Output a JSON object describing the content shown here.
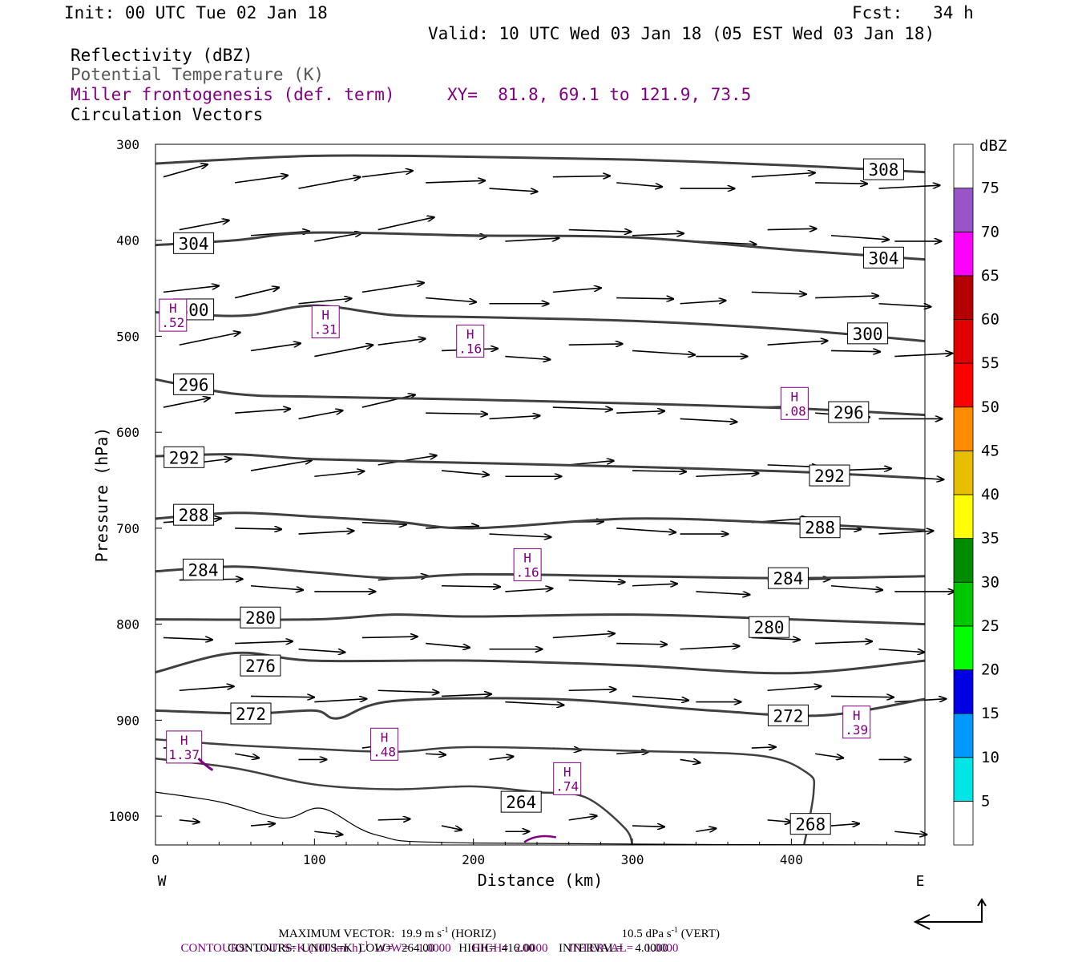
{
  "header": {
    "init": "Init: 00 UTC Tue 02 Jan 18",
    "fcst": "Fcst:   34 h",
    "valid": "Valid: 10 UTC Wed 03 Jan 18 (05 EST Wed 03 Jan 18)",
    "field1": "Reflectivity (dBZ)",
    "field2": "Potential Temperature (K)",
    "field3": "Miller frontogenesis (def. term)",
    "xy": "XY=  81.8, 69.1 to 121.9, 73.5",
    "field4": "Circulation Vectors"
  },
  "footer": {
    "max_vector_label": "MAXIMUM VECTOR:  19.9 m s",
    "max_vector_horiz_suffix": " (HORIZ)",
    "max_vector_vert": "10.5 dPa s",
    "max_vector_vert_suffix": " (VERT)",
    "contours1": "CONTOURS:  UNITS=K (100 km h)",
    "contours1_rest": "  LOW=   1.0000       HIGH=  2.0000       INTERVAL=    1.0000",
    "contours2": "CONTOURS:  UNITS=K  LOW=   264.00        HIGH=  416.00        INTERVAL=    4.0000",
    "exponent": "-1"
  },
  "colorbar": {
    "unit": "dBZ",
    "labels": [
      "5",
      "10",
      "15",
      "20",
      "25",
      "30",
      "35",
      "40",
      "45",
      "50",
      "55",
      "60",
      "65",
      "70",
      "75"
    ],
    "colors": [
      "#ffffff",
      "#00e5e5",
      "#0099ff",
      "#0000e5",
      "#00ff00",
      "#00c800",
      "#008c00",
      "#ffff00",
      "#e5bf00",
      "#ff8c00",
      "#ff0000",
      "#e00000",
      "#b40000",
      "#ff00ff",
      "#9955c8",
      "#ffffff"
    ]
  },
  "chart_data": {
    "type": "line",
    "xlabel": "Distance (km)",
    "ylabel": "Pressure (hPa)",
    "xlim": [
      0,
      484
    ],
    "ylim": [
      1030,
      300
    ],
    "x_ticks": [
      "0",
      "100",
      "200",
      "300",
      "400"
    ],
    "y_ticks": [
      "300",
      "400",
      "500",
      "600",
      "700",
      "800",
      "900",
      "1000"
    ],
    "left_end_label": "W",
    "right_end_label": "E",
    "theta_contours": [
      {
        "value": "308",
        "points": [
          [
            0,
            320
          ],
          [
            100,
            312
          ],
          [
            200,
            313
          ],
          [
            300,
            316
          ],
          [
            400,
            322
          ],
          [
            484,
            329
          ]
        ],
        "labels": [
          [
            458,
            326
          ]
        ]
      },
      {
        "value": "304",
        "points": [
          [
            0,
            405
          ],
          [
            50,
            400
          ],
          [
            100,
            392
          ],
          [
            200,
            395
          ],
          [
            300,
            397
          ],
          [
            400,
            410
          ],
          [
            484,
            420
          ]
        ],
        "labels": [
          [
            24,
            403
          ],
          [
            458,
            418
          ]
        ]
      },
      {
        "value": "300",
        "points": [
          [
            0,
            475
          ],
          [
            30,
            478
          ],
          [
            60,
            478
          ],
          [
            100,
            468
          ],
          [
            150,
            478
          ],
          [
            200,
            480
          ],
          [
            300,
            484
          ],
          [
            400,
            493
          ],
          [
            484,
            505
          ]
        ],
        "labels": [
          [
            24,
            472
          ],
          [
            448,
            497
          ]
        ]
      },
      {
        "value": "296",
        "points": [
          [
            0,
            545
          ],
          [
            50,
            560
          ],
          [
            100,
            563
          ],
          [
            200,
            566
          ],
          [
            300,
            570
          ],
          [
            400,
            575
          ],
          [
            484,
            582
          ]
        ],
        "labels": [
          [
            24,
            550
          ],
          [
            436,
            579
          ]
        ]
      },
      {
        "value": "292",
        "points": [
          [
            0,
            625
          ],
          [
            50,
            623
          ],
          [
            100,
            628
          ],
          [
            200,
            632
          ],
          [
            300,
            636
          ],
          [
            400,
            641
          ],
          [
            484,
            648
          ]
        ],
        "labels": [
          [
            18,
            626
          ],
          [
            424,
            645
          ]
        ]
      },
      {
        "value": "288",
        "points": [
          [
            0,
            690
          ],
          [
            50,
            684
          ],
          [
            100,
            688
          ],
          [
            150,
            693
          ],
          [
            200,
            700
          ],
          [
            300,
            690
          ],
          [
            400,
            695
          ],
          [
            484,
            702
          ]
        ],
        "labels": [
          [
            24,
            686
          ],
          [
            418,
            699
          ]
        ]
      },
      {
        "value": "284",
        "points": [
          [
            0,
            745
          ],
          [
            50,
            740
          ],
          [
            100,
            746
          ],
          [
            150,
            752
          ],
          [
            200,
            748
          ],
          [
            300,
            750
          ],
          [
            400,
            752
          ],
          [
            484,
            750
          ]
        ],
        "labels": [
          [
            30,
            743
          ],
          [
            398,
            752
          ]
        ]
      },
      {
        "value": "280",
        "points": [
          [
            0,
            795
          ],
          [
            100,
            795
          ],
          [
            150,
            790
          ],
          [
            200,
            792
          ],
          [
            300,
            790
          ],
          [
            400,
            795
          ],
          [
            484,
            800
          ]
        ],
        "labels": [
          [
            66,
            793
          ],
          [
            386,
            803
          ]
        ]
      },
      {
        "value": "276",
        "points": [
          [
            0,
            850
          ],
          [
            50,
            830
          ],
          [
            100,
            838
          ],
          [
            200,
            838
          ],
          [
            300,
            843
          ],
          [
            400,
            851
          ],
          [
            484,
            838
          ]
        ],
        "labels": [
          [
            66,
            843
          ]
        ]
      },
      {
        "value": "272",
        "points": [
          [
            0,
            890
          ],
          [
            60,
            893
          ],
          [
            100,
            890
          ],
          [
            115,
            898
          ],
          [
            150,
            880
          ],
          [
            250,
            878
          ],
          [
            350,
            890
          ],
          [
            420,
            895
          ],
          [
            484,
            878
          ]
        ],
        "labels": [
          [
            60,
            893
          ],
          [
            398,
            895
          ]
        ]
      },
      {
        "value": "268",
        "points": [
          [
            0,
            920
          ],
          [
            50,
            926
          ],
          [
            100,
            930
          ],
          [
            150,
            933
          ],
          [
            200,
            928
          ],
          [
            300,
            932
          ],
          [
            380,
            937
          ],
          [
            410,
            955
          ],
          [
            414,
            975
          ],
          [
            408,
            1030
          ]
        ],
        "labels": [
          [
            412,
            1008
          ]
        ]
      },
      {
        "value": "264",
        "points": [
          [
            0,
            940
          ],
          [
            50,
            950
          ],
          [
            100,
            967
          ],
          [
            150,
            972
          ],
          [
            200,
            969
          ],
          [
            240,
            975
          ],
          [
            270,
            980
          ],
          [
            295,
            1012
          ],
          [
            300,
            1030
          ]
        ],
        "labels": [
          [
            230,
            985
          ]
        ]
      }
    ],
    "frontogenesis_maxima": [
      {
        "label": "H",
        "value": ".52",
        "x": 11,
        "p": 478
      },
      {
        "label": "H",
        "value": ".31",
        "x": 107,
        "p": 485
      },
      {
        "label": "H",
        "value": ".16",
        "x": 198,
        "p": 505
      },
      {
        "label": "H",
        "value": ".08",
        "x": 402,
        "p": 570
      },
      {
        "label": "H",
        "value": ".16",
        "x": 234,
        "p": 738
      },
      {
        "label": "H",
        "value": ".39",
        "x": 441,
        "p": 902
      },
      {
        "label": "H",
        "value": "1.37",
        "x": 18,
        "p": 928
      },
      {
        "label": "H",
        "value": ".48",
        "x": 144,
        "p": 925
      },
      {
        "label": "H",
        "value": ".74",
        "x": 259,
        "p": 961
      }
    ]
  }
}
